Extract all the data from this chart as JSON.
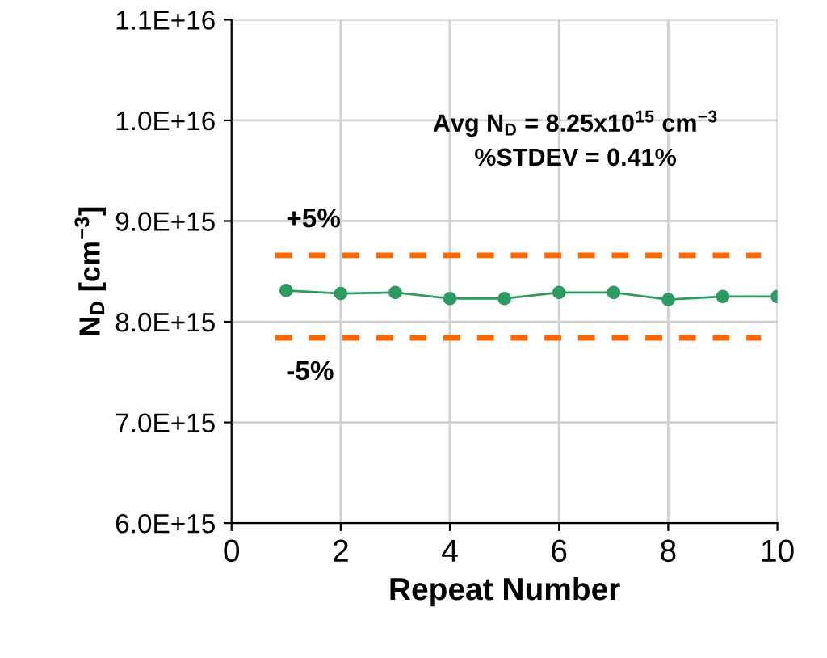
{
  "chart_data": {
    "type": "line",
    "xlabel": "Repeat Number",
    "ylabel": "N$_{D}$ [cm$^{−3}$]",
    "x": [
      1,
      2,
      3,
      4,
      5,
      6,
      7,
      8,
      9,
      10
    ],
    "series": [
      {
        "color": "#2e9a62",
        "values": [
          8310000000000000.0,
          8280000000000000.0,
          8290000000000000.0,
          8230000000000000.0,
          8230000000000000.0,
          8290000000000000.0,
          8290000000000000.0,
          8220000000000000.0,
          8250000000000000.0,
          8250000000000000.0
        ]
      }
    ],
    "xlim": [
      0,
      10
    ],
    "xticks": [
      0,
      2,
      4,
      6,
      8,
      10
    ],
    "ylim": [
      6000000000000000.0,
      1.1e+16
    ],
    "yticks": [
      {
        "value": 6000000000000000.0,
        "label": "6.0E+15"
      },
      {
        "value": 7000000000000000.0,
        "label": "7.0E+15"
      },
      {
        "value": 8000000000000000.0,
        "label": "8.0E+15"
      },
      {
        "value": 9000000000000000.0,
        "label": "9.0E+15"
      },
      {
        "value": 1e+16,
        "label": "1.0E+16"
      },
      {
        "value": 1.1e+16,
        "label": "1.1E+16"
      }
    ],
    "ref_lines": [
      {
        "axis": "y",
        "value": 8660000000000000.0,
        "color": "#ff6600",
        "line_style": "dashed"
      },
      {
        "axis": "y",
        "value": 7840000000000000.0,
        "color": "#ff6600",
        "line_style": "dashed"
      }
    ],
    "annotations": [
      "Avg N$_{D}$ = 8.25x10$^{15}$ cm$^{−3}$\n%STDEV = 0.41%",
      {
        "text": "+5%",
        "x": 1,
        "y": 8660000000000000.0
      },
      {
        "text": "-5%",
        "x": 1,
        "y": 7840000000000000.0
      }
    ],
    "grid": true,
    "marker": "circle",
    "line_style": "solid",
    "legend": false
  }
}
